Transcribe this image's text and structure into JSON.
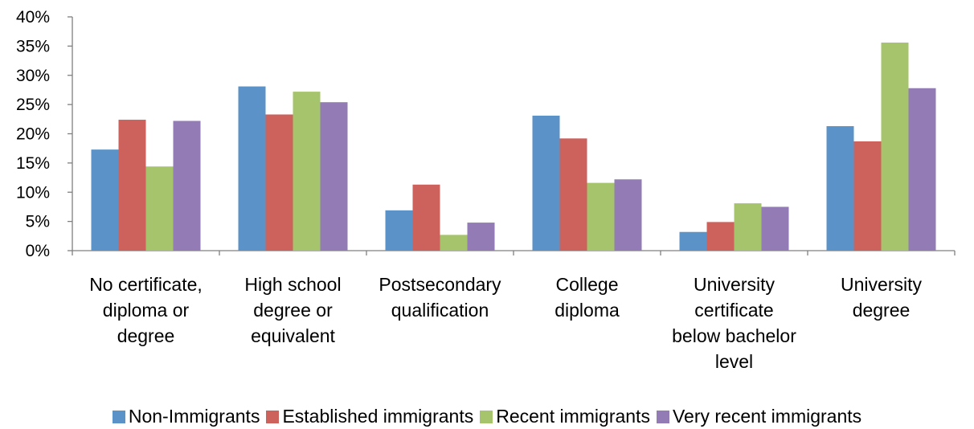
{
  "chart_data": {
    "type": "bar",
    "title": "",
    "xlabel": "",
    "ylabel": "",
    "ylim": [
      0,
      40
    ],
    "y_ticks": [
      "0%",
      "5%",
      "10%",
      "15%",
      "20%",
      "25%",
      "30%",
      "35%",
      "40%"
    ],
    "grid": false,
    "legend_position": "bottom",
    "categories": [
      [
        "No certificate,",
        "diploma or",
        "degree"
      ],
      [
        "High school",
        "degree or",
        "equivalent"
      ],
      [
        "Postsecondary",
        "qualification"
      ],
      [
        "College",
        "diploma"
      ],
      [
        "University",
        "certificate",
        "below bachelor",
        "level"
      ],
      [
        "University",
        "degree"
      ]
    ],
    "series": [
      {
        "name": "Non-Immigrants",
        "color": "#5B93C9",
        "values": [
          17.3,
          28.1,
          6.9,
          23.1,
          3.2,
          21.3
        ]
      },
      {
        "name": "Established immigrants",
        "color": "#CD625D",
        "values": [
          22.4,
          23.3,
          11.3,
          19.2,
          4.9,
          18.7
        ]
      },
      {
        "name": "Recent immigrants",
        "color": "#A6C46B",
        "values": [
          14.4,
          27.2,
          2.7,
          11.6,
          8.1,
          35.6
        ]
      },
      {
        "name": "Very recent immigrants",
        "color": "#937CB5",
        "values": [
          22.2,
          25.4,
          4.8,
          12.2,
          7.5,
          27.8
        ]
      }
    ]
  }
}
